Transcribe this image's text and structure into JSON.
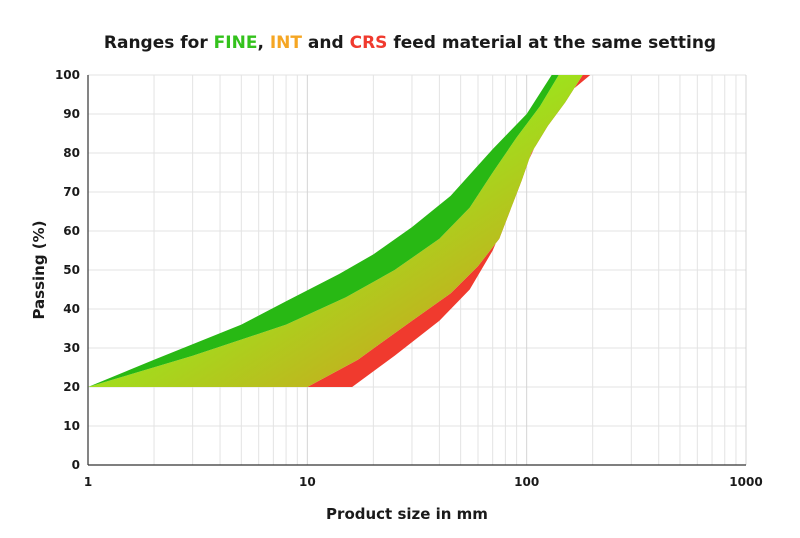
{
  "chart_data": {
    "type": "area",
    "title": {
      "prefix": "Ranges for ",
      "fine": "FINE",
      "sep1": ", ",
      "int": "INT",
      "and": " and ",
      "crs": "CRS",
      "suffix": " feed material at the same setting"
    },
    "xlabel": "Product size in mm",
    "ylabel": "Passing (%)",
    "xscale": "log",
    "xlim": [
      1,
      1000
    ],
    "ylim": [
      0,
      100
    ],
    "x_ticks": [
      1,
      10,
      100,
      1000
    ],
    "x_tick_labels": [
      "1",
      "10",
      "100",
      "1000"
    ],
    "y_ticks": [
      0,
      10,
      20,
      30,
      40,
      50,
      60,
      70,
      80,
      90,
      100
    ],
    "y_tick_labels": [
      "0",
      "10",
      "20",
      "30",
      "40",
      "50",
      "60",
      "70",
      "80",
      "90",
      "100"
    ],
    "grid": true,
    "series": [
      {
        "name": "CRS",
        "color": "#f03a2e",
        "upper": [
          [
            10,
            20
          ],
          [
            17,
            27
          ],
          [
            30,
            37
          ],
          [
            45,
            44
          ],
          [
            60,
            51
          ],
          [
            75,
            58
          ],
          [
            95,
            73
          ],
          [
            105,
            80
          ],
          [
            125,
            87
          ],
          [
            150,
            93
          ],
          [
            180,
            100
          ]
        ],
        "lower": [
          [
            16,
            20
          ],
          [
            25,
            28
          ],
          [
            40,
            37
          ],
          [
            55,
            45
          ],
          [
            70,
            55
          ],
          [
            85,
            66
          ],
          [
            100,
            77
          ],
          [
            112,
            83
          ],
          [
            135,
            90
          ],
          [
            160,
            96
          ],
          [
            195,
            100
          ]
        ]
      },
      {
        "name": "INT",
        "color_top": "#9be61c",
        "color_bottom": "#e08a20",
        "upper": [
          [
            1,
            20
          ],
          [
            3,
            28
          ],
          [
            8,
            36
          ],
          [
            15,
            43
          ],
          [
            25,
            50
          ],
          [
            40,
            58
          ],
          [
            55,
            66
          ],
          [
            70,
            75
          ],
          [
            90,
            84
          ],
          [
            115,
            92
          ],
          [
            140,
            100
          ]
        ],
        "lower": [
          [
            10,
            20
          ],
          [
            17,
            27
          ],
          [
            30,
            37
          ],
          [
            45,
            44
          ],
          [
            60,
            51
          ],
          [
            75,
            58
          ],
          [
            95,
            73
          ],
          [
            105,
            80
          ],
          [
            125,
            87
          ],
          [
            150,
            93
          ],
          [
            180,
            100
          ]
        ]
      },
      {
        "name": "FINE",
        "color": "#28b814",
        "upper": [
          [
            1,
            20
          ],
          [
            2,
            27
          ],
          [
            5,
            36
          ],
          [
            8,
            42
          ],
          [
            14,
            49
          ],
          [
            20,
            54
          ],
          [
            30,
            61
          ],
          [
            45,
            69
          ],
          [
            70,
            81
          ],
          [
            100,
            90
          ],
          [
            130,
            100
          ]
        ],
        "lower": [
          [
            1,
            20
          ],
          [
            3,
            28
          ],
          [
            8,
            36
          ],
          [
            15,
            43
          ],
          [
            25,
            50
          ],
          [
            40,
            58
          ],
          [
            55,
            66
          ],
          [
            70,
            75
          ],
          [
            90,
            84
          ],
          [
            115,
            92
          ],
          [
            140,
            100
          ]
        ]
      }
    ]
  },
  "colors": {
    "fine_label": "#33c21c",
    "int_label": "#f5a623",
    "crs_label": "#f03a2e",
    "grid": "#e3e3e3",
    "axis": "#333333"
  }
}
